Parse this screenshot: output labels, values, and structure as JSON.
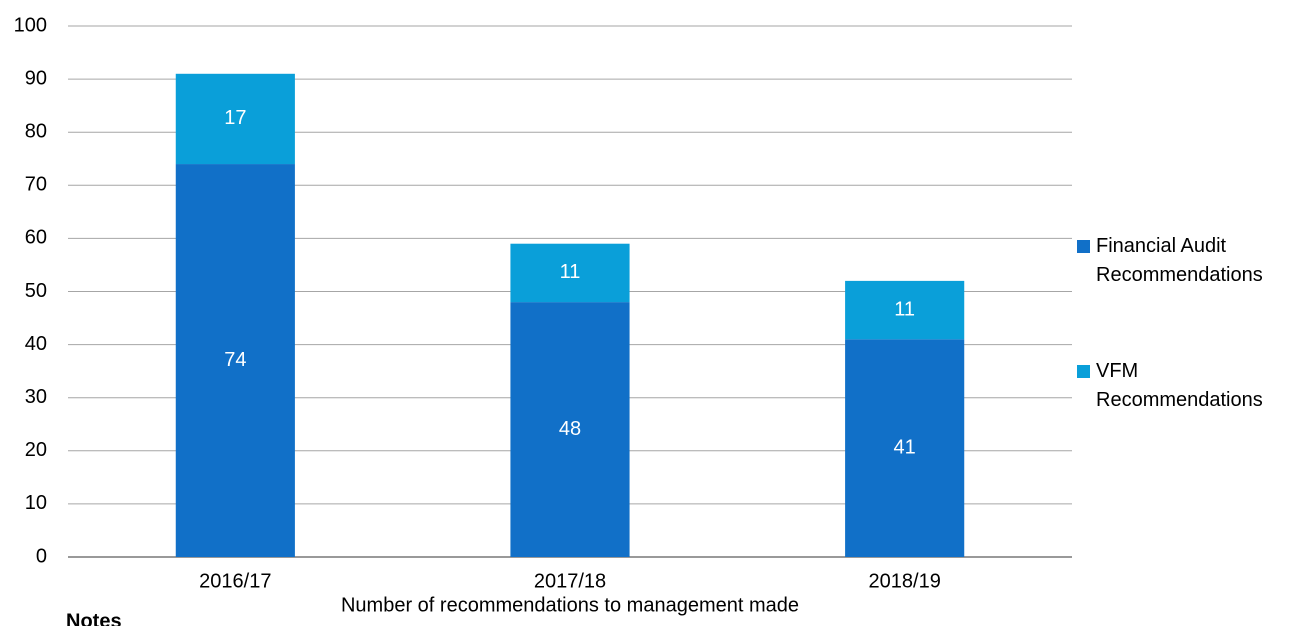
{
  "chart_data": {
    "type": "bar",
    "stacked": true,
    "x_label": "Number of recommendations to management made",
    "notes_heading": "Notes",
    "categories": [
      "2016/17",
      "2017/18",
      "2018/19"
    ],
    "series": [
      {
        "name": "Financial Audit Recommendations",
        "color": "#1170c8",
        "values": [
          74,
          48,
          41
        ]
      },
      {
        "name": "VFM Recommendations",
        "color": "#0a9fd9",
        "values": [
          17,
          11,
          11
        ]
      }
    ],
    "ylim": [
      0,
      100
    ],
    "yticks": [
      0,
      10,
      20,
      30,
      40,
      50,
      60,
      70,
      80,
      90,
      100
    ],
    "grid": true,
    "legend": "right"
  }
}
